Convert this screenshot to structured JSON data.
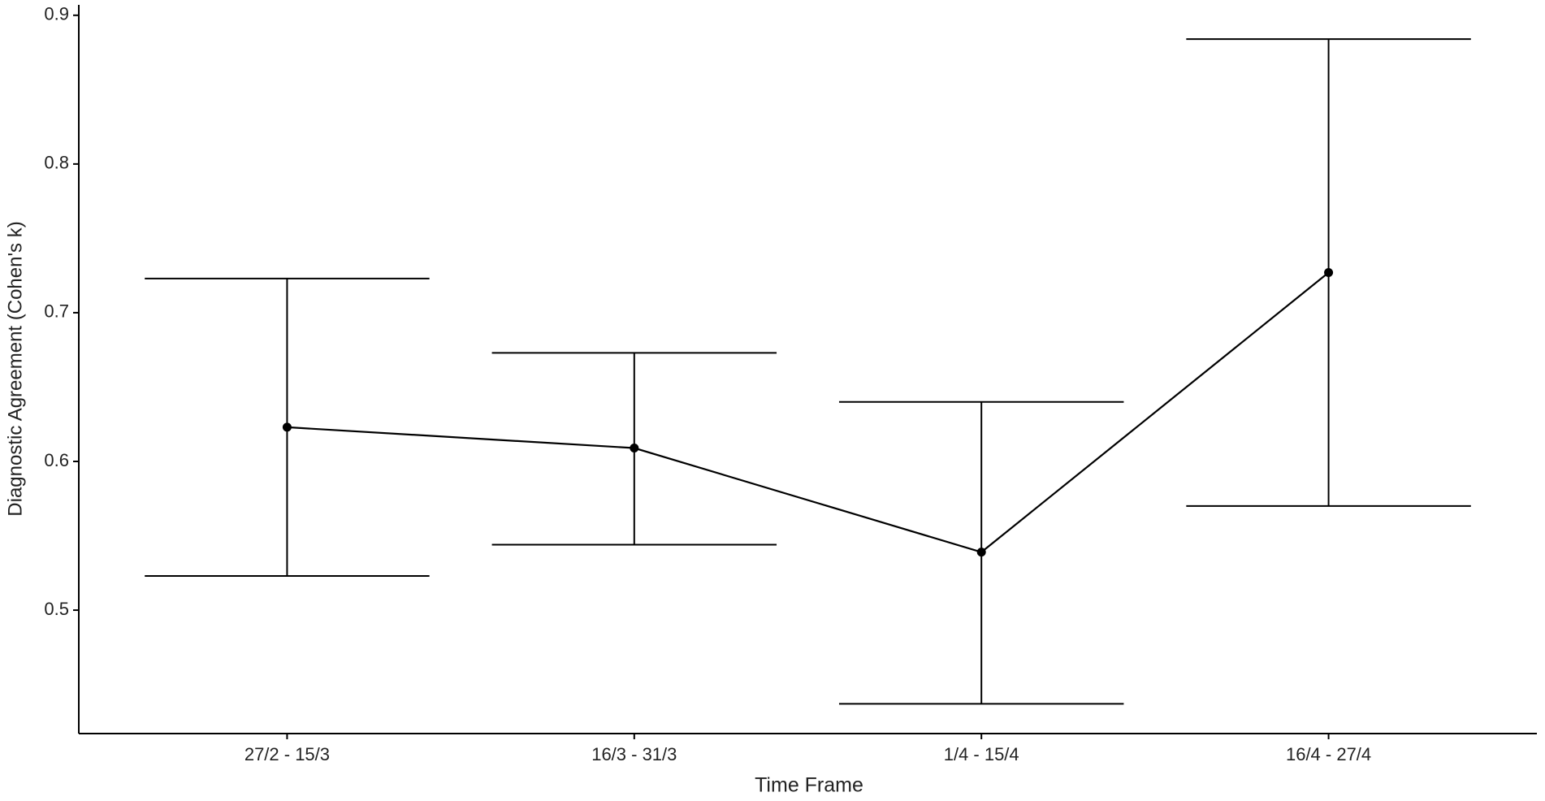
{
  "chart_data": {
    "type": "line",
    "x_label": "Time Frame",
    "y_label": "Diagnostic Agreement (Cohen's k)",
    "categories": [
      "27/2 - 15/3",
      "16/3 - 31/3",
      "1/4 - 15/4",
      "16/4 - 27/4"
    ],
    "values": [
      0.623,
      0.609,
      0.539,
      0.727
    ],
    "ci_lower": [
      0.523,
      0.544,
      0.437,
      0.57
    ],
    "ci_upper": [
      0.723,
      0.673,
      0.64,
      0.884
    ],
    "color": "#000000",
    "ylim": [
      0.417,
      0.907
    ],
    "yticks": [
      0.5,
      0.6,
      0.7,
      0.8,
      0.9
    ],
    "grid": false
  }
}
